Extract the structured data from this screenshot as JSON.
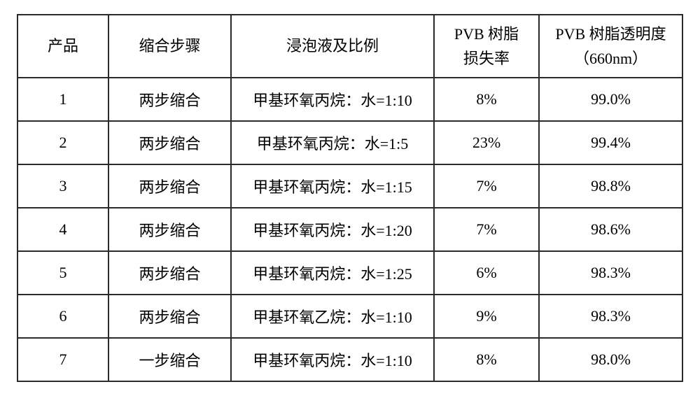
{
  "table": {
    "columns": [
      {
        "label": "产品"
      },
      {
        "label": "缩合步骤"
      },
      {
        "label": "浸泡液及比例"
      },
      {
        "label_line1": "PVB 树脂",
        "label_line2": "损失率"
      },
      {
        "label_line1": "PVB 树脂透明度",
        "label_line2": "（660nm）"
      }
    ],
    "rows": [
      {
        "c1": "1",
        "c2": "两步缩合",
        "c3": "甲基环氧丙烷：水=1:10",
        "c4": "8%",
        "c5": "99.0%"
      },
      {
        "c1": "2",
        "c2": "两步缩合",
        "c3": "甲基环氧丙烷：水=1:5",
        "c4": "23%",
        "c5": "99.4%"
      },
      {
        "c1": "3",
        "c2": "两步缩合",
        "c3": "甲基环氧丙烷：水=1:15",
        "c4": "7%",
        "c5": "98.8%"
      },
      {
        "c1": "4",
        "c2": "两步缩合",
        "c3": "甲基环氧丙烷：水=1:20",
        "c4": "7%",
        "c5": "98.6%"
      },
      {
        "c1": "5",
        "c2": "两步缩合",
        "c3": "甲基环氧丙烷：水=1:25",
        "c4": "6%",
        "c5": "98.3%"
      },
      {
        "c1": "6",
        "c2": "两步缩合",
        "c3": "甲基环氧乙烷：水=1:10",
        "c4": "9%",
        "c5": "98.3%"
      },
      {
        "c1": "7",
        "c2": "一步缩合",
        "c3": "甲基环氧丙烷：水=1:10",
        "c4": "8%",
        "c5": "98.0%"
      }
    ]
  }
}
